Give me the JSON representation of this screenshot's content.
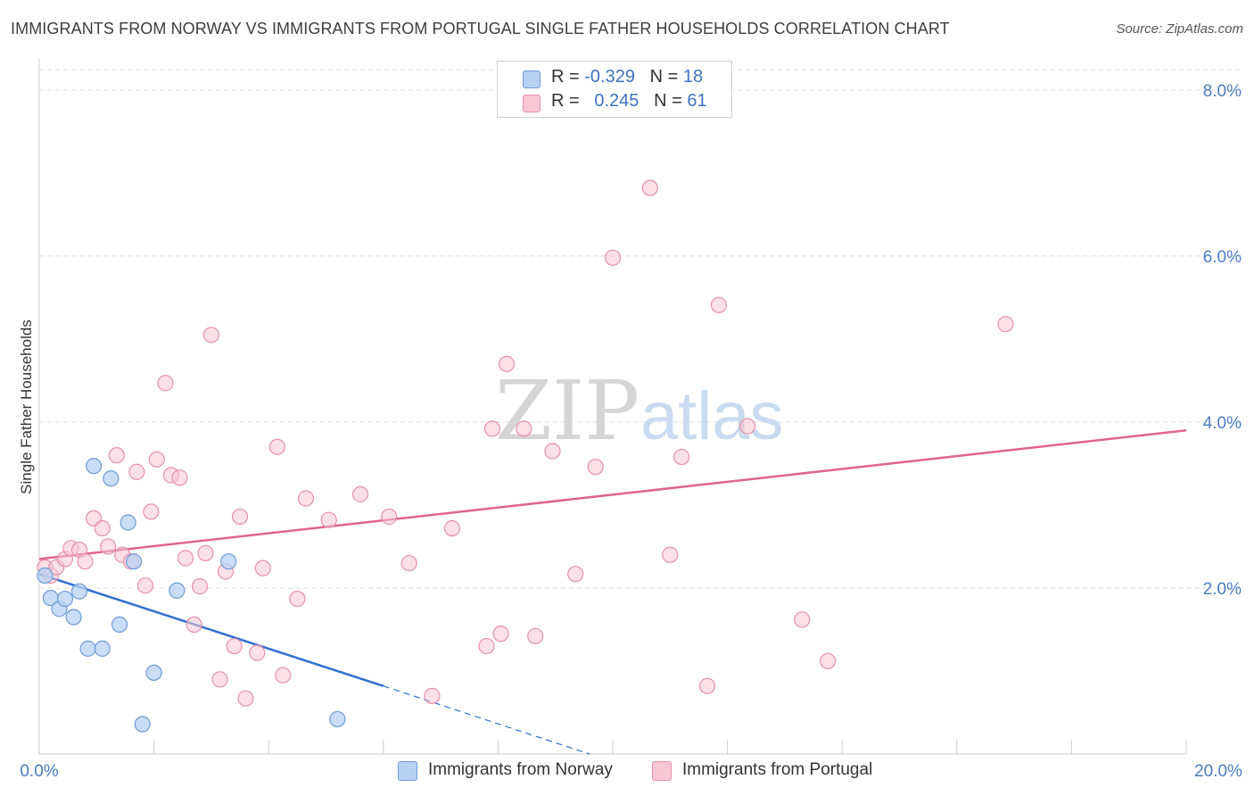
{
  "title": "IMMIGRANTS FROM NORWAY VS IMMIGRANTS FROM PORTUGAL SINGLE FATHER HOUSEHOLDS CORRELATION CHART",
  "source": "Source: ZipAtlas.com",
  "watermark": {
    "zip": "ZIP",
    "atlas": "atlas"
  },
  "colors": {
    "norway_fill": "#b8d1f3",
    "norway_stroke": "#6e9bd6",
    "norway_line": "#2f6fcf",
    "portugal_fill": "#f8c6d4",
    "portugal_stroke": "#e591ac",
    "portugal_line": "#e0648e",
    "tick": "#4a7cc0",
    "grid": "#dddddd"
  },
  "legend": {
    "norway": {
      "r_label": "R = ",
      "r_value": "-0.329",
      "n_label": "N = ",
      "n_value": "18"
    },
    "portugal": {
      "r_label": "R = ",
      "r_value": "0.245",
      "n_label": "N = ",
      "n_value": "61"
    }
  },
  "chart_data": {
    "type": "scatter",
    "title": "IMMIGRANTS FROM NORWAY VS IMMIGRANTS FROM PORTUGAL SINGLE FATHER HOUSEHOLDS CORRELATION CHART",
    "xlabel": "",
    "ylabel": "Single Father Households",
    "xlim": [
      0,
      20
    ],
    "ylim": [
      0,
      8.3
    ],
    "y_ticks": [
      2,
      4,
      6,
      8
    ],
    "y_tick_labels": [
      "2.0%",
      "4.0%",
      "6.0%",
      "8.0%"
    ],
    "x_tick_labels": {
      "min": "0.0%",
      "max": "20.0%"
    },
    "grid": true,
    "legend_position": "top-center",
    "series": [
      {
        "name": "Immigrants from Norway",
        "R": -0.329,
        "N": 18,
        "trend": {
          "x_start": 0.0,
          "y_start": 2.17,
          "x_end_solid": 6.0,
          "y_end_solid": 0.82,
          "x_end_dashed": 9.6,
          "y_end_dashed": 0.0
        },
        "points": [
          [
            0.1,
            2.15
          ],
          [
            0.2,
            1.88
          ],
          [
            0.35,
            1.75
          ],
          [
            0.45,
            1.87
          ],
          [
            0.6,
            1.65
          ],
          [
            0.7,
            1.96
          ],
          [
            0.85,
            1.27
          ],
          [
            0.95,
            3.47
          ],
          [
            1.1,
            1.27
          ],
          [
            1.25,
            3.32
          ],
          [
            1.4,
            1.56
          ],
          [
            1.55,
            2.79
          ],
          [
            1.65,
            2.32
          ],
          [
            1.8,
            0.36
          ],
          [
            2.0,
            0.98
          ],
          [
            2.4,
            1.97
          ],
          [
            3.3,
            2.32
          ],
          [
            5.2,
            0.42
          ]
        ]
      },
      {
        "name": "Immigrants from Portugal",
        "R": 0.245,
        "N": 61,
        "trend": {
          "x_start": 0.0,
          "y_start": 2.35,
          "x_end": 20.0,
          "y_end": 3.9
        },
        "points": [
          [
            0.1,
            2.25
          ],
          [
            0.2,
            2.15
          ],
          [
            0.3,
            2.25
          ],
          [
            0.45,
            2.35
          ],
          [
            0.55,
            2.48
          ],
          [
            0.7,
            2.46
          ],
          [
            0.8,
            2.32
          ],
          [
            0.95,
            2.84
          ],
          [
            1.1,
            2.72
          ],
          [
            1.2,
            2.5
          ],
          [
            1.35,
            3.6
          ],
          [
            1.45,
            2.4
          ],
          [
            1.6,
            2.32
          ],
          [
            1.7,
            3.4
          ],
          [
            1.85,
            2.03
          ],
          [
            1.95,
            2.92
          ],
          [
            2.05,
            3.55
          ],
          [
            2.2,
            4.47
          ],
          [
            2.3,
            3.36
          ],
          [
            2.45,
            3.33
          ],
          [
            2.55,
            2.36
          ],
          [
            2.7,
            1.56
          ],
          [
            2.8,
            2.02
          ],
          [
            2.9,
            2.42
          ],
          [
            3.0,
            5.05
          ],
          [
            3.15,
            0.9
          ],
          [
            3.25,
            2.2
          ],
          [
            3.4,
            1.3
          ],
          [
            3.5,
            2.86
          ],
          [
            3.6,
            0.67
          ],
          [
            3.8,
            1.22
          ],
          [
            3.9,
            2.24
          ],
          [
            4.15,
            3.7
          ],
          [
            4.25,
            0.95
          ],
          [
            4.5,
            1.87
          ],
          [
            4.65,
            3.08
          ],
          [
            5.05,
            2.82
          ],
          [
            5.6,
            3.13
          ],
          [
            6.1,
            2.86
          ],
          [
            6.45,
            2.3
          ],
          [
            6.85,
            0.7
          ],
          [
            7.2,
            2.72
          ],
          [
            7.8,
            1.3
          ],
          [
            7.9,
            3.92
          ],
          [
            8.05,
            1.45
          ],
          [
            8.15,
            4.7
          ],
          [
            8.45,
            3.92
          ],
          [
            8.65,
            1.42
          ],
          [
            8.95,
            3.65
          ],
          [
            9.35,
            2.17
          ],
          [
            9.7,
            3.46
          ],
          [
            10.0,
            5.98
          ],
          [
            10.65,
            6.82
          ],
          [
            11.0,
            2.4
          ],
          [
            11.2,
            3.58
          ],
          [
            11.65,
            0.82
          ],
          [
            11.85,
            5.41
          ],
          [
            12.35,
            3.95
          ],
          [
            13.3,
            1.62
          ],
          [
            13.75,
            1.12
          ],
          [
            16.85,
            5.18
          ]
        ]
      }
    ]
  }
}
